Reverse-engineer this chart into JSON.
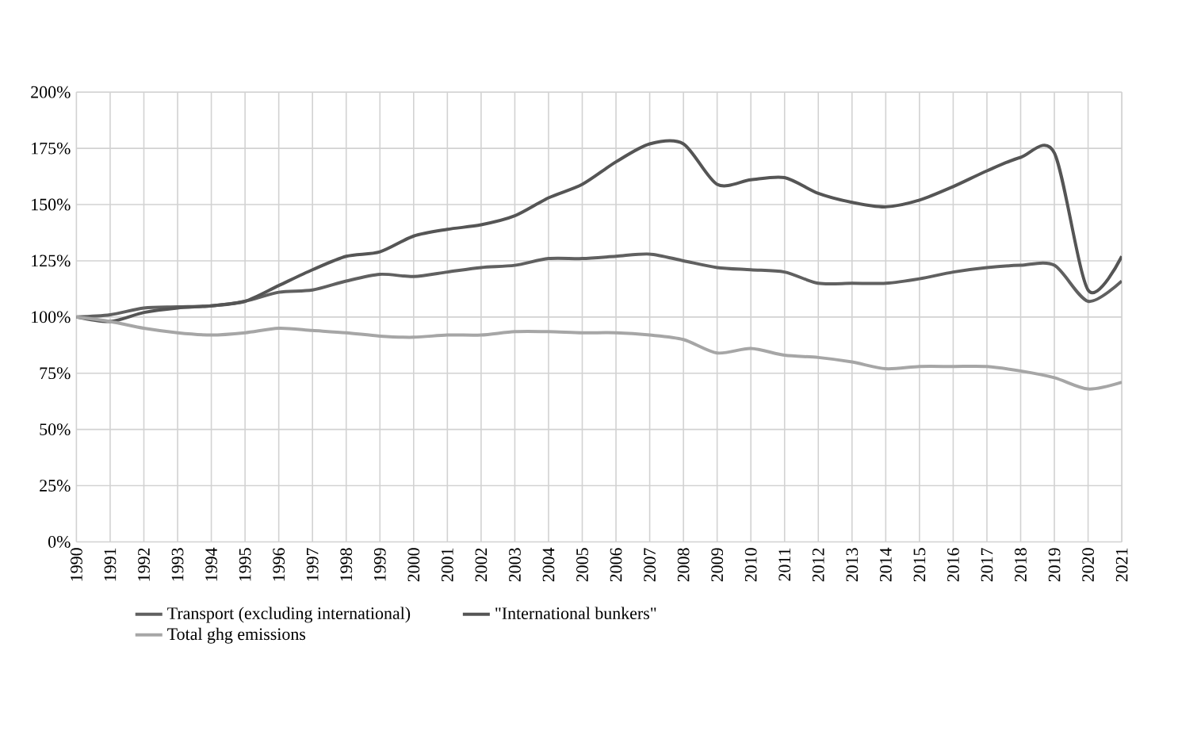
{
  "chart_data": {
    "type": "line",
    "categories": [
      "1990",
      "1991",
      "1992",
      "1993",
      "1994",
      "1995",
      "1996",
      "1997",
      "1998",
      "1999",
      "2000",
      "2001",
      "2002",
      "2003",
      "2004",
      "2005",
      "2006",
      "2007",
      "2008",
      "2009",
      "2010",
      "2011",
      "2012",
      "2013",
      "2014",
      "2015",
      "2016",
      "2017",
      "2018",
      "2019",
      "2020",
      "2021"
    ],
    "ylim": [
      0,
      200
    ],
    "yticks": [
      {
        "value": 0,
        "label": "0%"
      },
      {
        "value": 25,
        "label": "25%"
      },
      {
        "value": 50,
        "label": "50%"
      },
      {
        "value": 75,
        "label": "75%"
      },
      {
        "value": 100,
        "label": "100%"
      },
      {
        "value": 125,
        "label": "125%"
      },
      {
        "value": 150,
        "label": "150%"
      },
      {
        "value": 175,
        "label": "175%"
      },
      {
        "value": 200,
        "label": "200%"
      }
    ],
    "grid": true,
    "legend": "bottom",
    "line_style": "solid",
    "marker": "none",
    "series": [
      {
        "name": "Transport (excluding international)",
        "color": "#606060",
        "values": [
          100,
          101,
          104,
          104.5,
          105,
          107,
          111,
          112,
          116,
          119,
          118,
          120,
          122,
          123,
          126,
          126,
          127,
          128,
          125,
          122,
          121,
          120,
          115,
          115,
          115,
          117,
          120,
          122,
          123,
          123,
          107,
          116
        ]
      },
      {
        "name": "\"International bunkers\"",
        "color": "#555555",
        "values": [
          100,
          98,
          102,
          104,
          105,
          107,
          114,
          121,
          127,
          129,
          136,
          139,
          141,
          145,
          153,
          159,
          169,
          177,
          177,
          159,
          161,
          162,
          155,
          151,
          149,
          152,
          158,
          165,
          171,
          173,
          112,
          127
        ]
      },
      {
        "name": "Total ghg emissions",
        "color": "#a6a6a6",
        "values": [
          100,
          98,
          95,
          93,
          92,
          93,
          95,
          94,
          93,
          91.5,
          91,
          92,
          92,
          93.5,
          93.5,
          93,
          93,
          92,
          90,
          84,
          86,
          83,
          82,
          80,
          77,
          78,
          78,
          78,
          76,
          73,
          68,
          71
        ]
      }
    ]
  }
}
